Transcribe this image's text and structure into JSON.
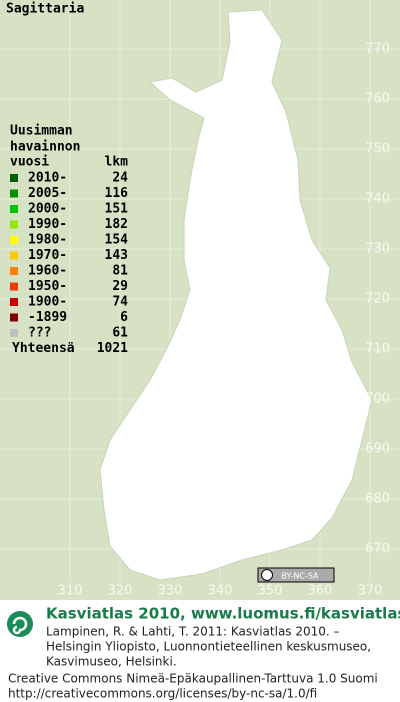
{
  "title": "Sagittaria",
  "legend": {
    "heading": [
      "Uusimman",
      "havainnon"
    ],
    "col_year": "vuosi",
    "col_count": "lkm",
    "items": [
      {
        "label": "2010-",
        "count": 24,
        "color": "#006000"
      },
      {
        "label": "2005-",
        "count": 116,
        "color": "#009000"
      },
      {
        "label": "2000-",
        "count": 151,
        "color": "#00c800"
      },
      {
        "label": "1990-",
        "count": 182,
        "color": "#90e800"
      },
      {
        "label": "1980-",
        "count": 154,
        "color": "#ffff00"
      },
      {
        "label": "1970-",
        "count": 143,
        "color": "#ffc800"
      },
      {
        "label": "1960-",
        "count": 81,
        "color": "#ff8000"
      },
      {
        "label": "1950-",
        "count": 29,
        "color": "#e84000"
      },
      {
        "label": "1900-",
        "count": 74,
        "color": "#c80000"
      },
      {
        "label": "-1899",
        "count": 6,
        "color": "#800000"
      },
      {
        "label": "???",
        "count": 61,
        "color": "#c0c0c0"
      }
    ],
    "total_label": "Yhteensä",
    "total": 1021
  },
  "map": {
    "xticks": [
      310,
      320,
      330,
      340,
      350,
      360,
      370
    ],
    "yticks": [
      670,
      680,
      690,
      700,
      710,
      720,
      730,
      740,
      750,
      760,
      770
    ]
  },
  "badge": "BY-NC-SA",
  "footer": {
    "brand": "Kasviatlas 2010, www.luomus.fi/kasviatlas",
    "citation": [
      "Lampinen, R. & Lahti, T. 2011: Kasviatlas 2010. –",
      "Helsingin Yliopisto, Luonnontieteellinen keskusmuseo,",
      "Kasvimuseo, Helsinki."
    ],
    "license": [
      "Creative Commons Nimeä-Epäkaupallinen-Tarttuva 1.0 Suomi",
      "http://creativecommons.org/licenses/by-nc-sa/1.0/fi"
    ]
  }
}
